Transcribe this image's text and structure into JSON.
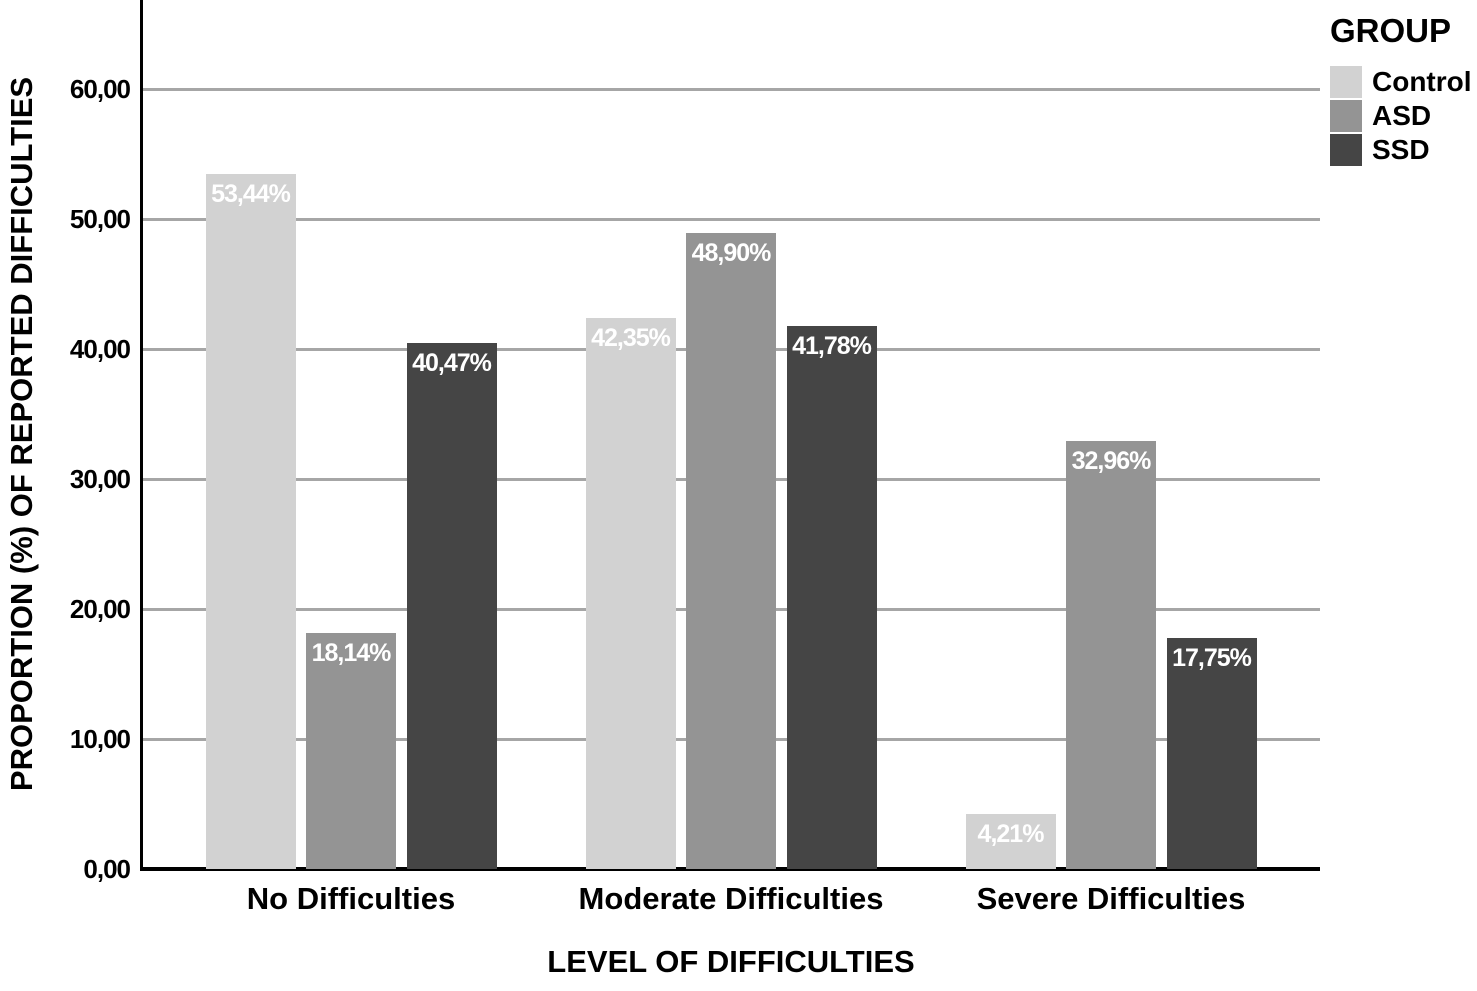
{
  "chart_data": {
    "type": "bar",
    "title": "",
    "categories": [
      "No Difficulties",
      "Moderate Difficulties",
      "Severe Difficulties"
    ],
    "series": [
      {
        "name": "Control",
        "color": "#d2d2d2",
        "values": [
          53.44,
          42.35,
          4.21
        ],
        "value_labels": [
          "53,44%",
          "42,35%",
          "4,21%"
        ]
      },
      {
        "name": "ASD",
        "color": "#949494",
        "values": [
          18.14,
          48.9,
          32.96
        ],
        "value_labels": [
          "18,14%",
          "48,90%",
          "32,96%"
        ]
      },
      {
        "name": "SSD",
        "color": "#454545",
        "values": [
          40.47,
          41.78,
          17.75
        ],
        "value_labels": [
          "40,47%",
          "41,78%",
          "17,75%"
        ]
      }
    ],
    "xlabel": "LEVEL OF DIFFICULTIES",
    "ylabel": "PROPORTION (%) OF REPORTED DIFFICULTIES",
    "ylim": [
      0,
      66.8
    ],
    "yticks": [
      {
        "value": 0,
        "label": "0,00"
      },
      {
        "value": 10,
        "label": "10,00"
      },
      {
        "value": 20,
        "label": "20,00"
      },
      {
        "value": 30,
        "label": "30,00"
      },
      {
        "value": 40,
        "label": "40,00"
      },
      {
        "value": 50,
        "label": "50,00"
      },
      {
        "value": 60,
        "label": "60,00"
      }
    ],
    "legend": {
      "title": "GROUP",
      "entries": [
        "Control",
        "ASD",
        "SSD"
      ],
      "position": "top-right"
    },
    "grid": true,
    "decimal_separator": ",",
    "colors": {
      "gridline": "#a6a6a6",
      "axis_line": "#000000",
      "value_label_text": "#ffffff",
      "background": "#ffffff",
      "text": "#000000"
    }
  }
}
